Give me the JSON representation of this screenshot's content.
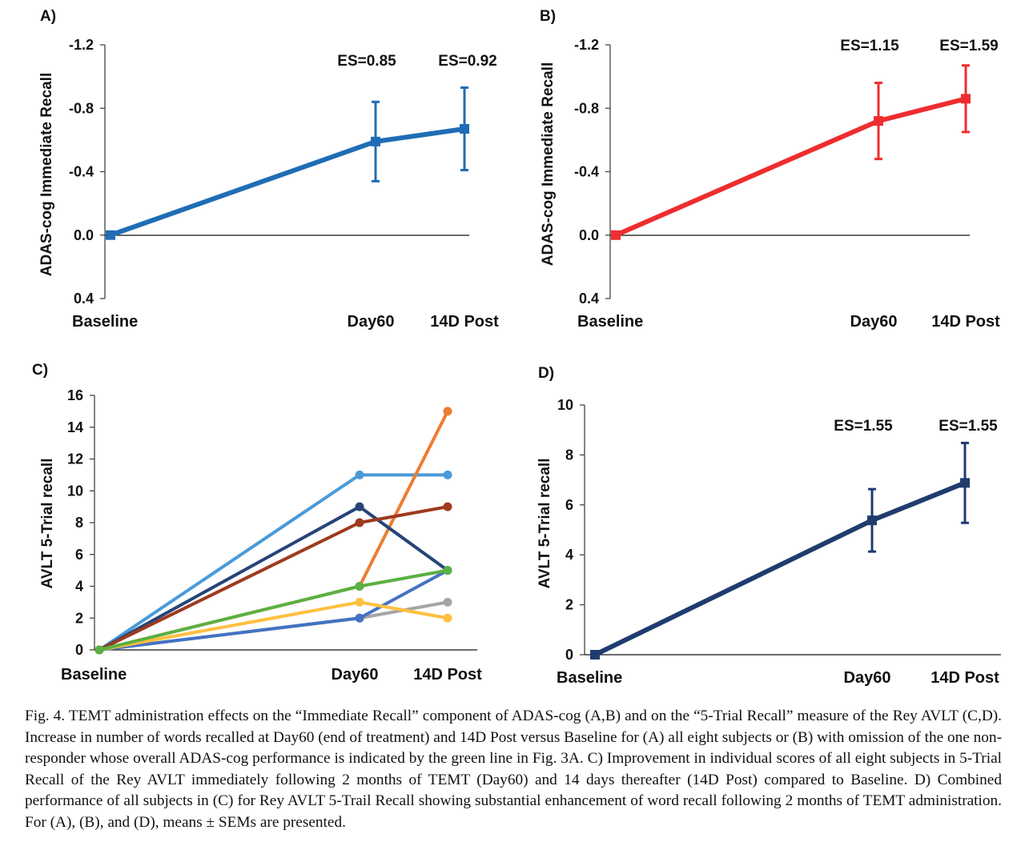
{
  "chart_data": [
    {
      "id": "A",
      "panel_label": "A)",
      "type": "line",
      "ylabel": "ADAS-cog Immediate Recall",
      "categories": [
        "Baseline",
        "Day60",
        "14D Post"
      ],
      "ylim": [
        -1.2,
        0.4
      ],
      "y_inverted": true,
      "yticks": [
        -1.2,
        -0.8,
        -0.4,
        0.0,
        0.4
      ],
      "ytick_labels": [
        "-1.2",
        "-0.8",
        "-0.4",
        "0.0",
        "0.4"
      ],
      "series": [
        {
          "color": "#1f6db5",
          "values": [
            0.0,
            -0.59,
            -0.67
          ],
          "error": [
            0.0,
            0.25,
            0.26
          ]
        }
      ],
      "annotations": [
        {
          "category": "Day60",
          "text": "ES=0.85"
        },
        {
          "category": "14D Post",
          "text": "ES=0.92"
        }
      ]
    },
    {
      "id": "B",
      "panel_label": "B)",
      "type": "line",
      "ylabel": "ADAS-cog Immediate Recall",
      "categories": [
        "Baseline",
        "Day60",
        "14D Post"
      ],
      "ylim": [
        -1.2,
        0.4
      ],
      "y_inverted": true,
      "yticks": [
        -1.2,
        -0.8,
        -0.4,
        0.0,
        0.4
      ],
      "ytick_labels": [
        "-1.2",
        "-0.8",
        "-0.4",
        "0.0",
        "0.4"
      ],
      "series": [
        {
          "color": "#ee2d2f",
          "values": [
            0.0,
            -0.72,
            -0.86
          ],
          "error": [
            0.0,
            0.24,
            0.21
          ]
        }
      ],
      "annotations": [
        {
          "category": "Day60",
          "text": "ES=1.15"
        },
        {
          "category": "14D Post",
          "text": "ES=1.59"
        }
      ]
    },
    {
      "id": "C",
      "panel_label": "C)",
      "type": "line",
      "ylabel": "AVLT 5-Trial recall",
      "categories": [
        "Baseline",
        "Day60",
        "14D Post"
      ],
      "ylim": [
        0,
        16
      ],
      "y_inverted": false,
      "yticks": [
        0,
        2,
        4,
        6,
        8,
        10,
        12,
        14,
        16
      ],
      "ytick_labels": [
        "0",
        "2",
        "4",
        "6",
        "8",
        "10",
        "12",
        "14",
        "16"
      ],
      "series": [
        {
          "color": "#4a9ad8",
          "values": [
            0,
            11,
            11
          ]
        },
        {
          "color": "#ed7d31",
          "values": [
            0,
            4,
            15
          ]
        },
        {
          "color": "#264478",
          "values": [
            0,
            9,
            5
          ]
        },
        {
          "color": "#9e3a1e",
          "values": [
            0,
            8,
            9
          ]
        },
        {
          "color": "#a5a5a5",
          "values": [
            0,
            2,
            3
          ]
        },
        {
          "color": "#4472c4",
          "values": [
            0,
            2,
            5
          ]
        },
        {
          "color": "#ffc040",
          "values": [
            0,
            3,
            2
          ]
        },
        {
          "color": "#5bb043",
          "values": [
            0,
            4,
            5
          ]
        }
      ],
      "annotations": []
    },
    {
      "id": "D",
      "panel_label": "D)",
      "type": "line",
      "ylabel": "AVLT 5-Trial recall",
      "categories": [
        "Baseline",
        "Day60",
        "14D Post"
      ],
      "ylim": [
        0,
        10
      ],
      "y_inverted": false,
      "yticks": [
        0,
        2,
        4,
        6,
        8,
        10
      ],
      "ytick_labels": [
        "0",
        "2",
        "4",
        "6",
        "8",
        "10"
      ],
      "series": [
        {
          "color": "#1f3c6e",
          "values": [
            0,
            5.38,
            6.88
          ],
          "error": [
            0,
            1.25,
            1.6
          ]
        }
      ],
      "annotations": [
        {
          "category": "Day60",
          "text": "ES=1.55"
        },
        {
          "category": "14D Post",
          "text": "ES=1.55"
        }
      ]
    }
  ],
  "caption": "Fig. 4. TEMT administration effects on the “Immediate Recall” component of ADAS-cog (A,B) and on the “5-Trial Recall” measure of the Rey AVLT (C,D). Increase in number of words recalled at Day60 (end of treatment) and 14D Post versus Baseline for (A) all eight subjects or (B) with omission of the one non-responder whose overall ADAS-cog performance is indicated by the green line in Fig. 3A. C) Improvement in individual scores of all eight subjects in 5-Trial Recall of the Rey AVLT immediately following 2 months of TEMT (Day60) and 14 days thereafter (14D Post) compared to Baseline. D) Combined performance of all subjects in (C) for Rey AVLT 5-Trail Recall showing substantial enhancement of word recall following 2 months of TEMT administration. For (A), (B), and (D), means ± SEMs are presented."
}
